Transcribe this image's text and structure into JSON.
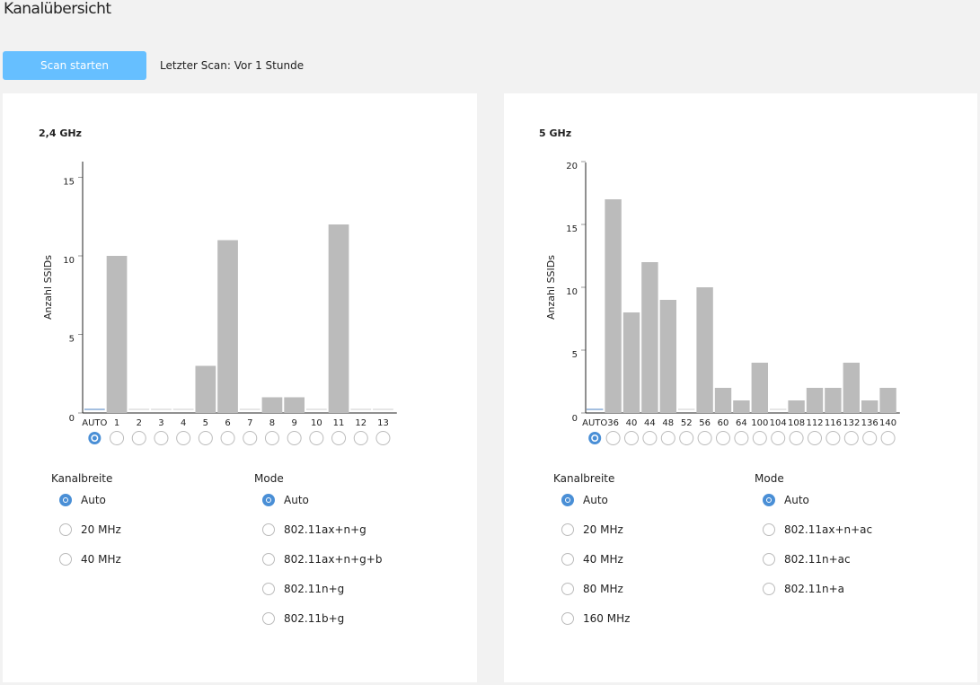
{
  "header": {
    "title": "Kanalübersicht",
    "scan_button": "Scan starten",
    "last_scan": "Letzter Scan: Vor 1 Stunde"
  },
  "colors": {
    "accent": "#66bfff",
    "radio_selected": "#4a8fd6",
    "bar": "#bbbbbb"
  },
  "chart_data": [
    {
      "type": "bar",
      "title": "2,4 GHz",
      "ylabel": "Anzahl SSIDs",
      "ylim": [
        0,
        16
      ],
      "yticks": [
        0,
        5,
        10,
        15
      ],
      "categories": [
        "AUTO",
        "1",
        "2",
        "3",
        "4",
        "5",
        "6",
        "7",
        "8",
        "9",
        "10",
        "11",
        "12",
        "13"
      ],
      "values": [
        0,
        10,
        0,
        0,
        0,
        3,
        11,
        0,
        1,
        1,
        0,
        12,
        0,
        0
      ],
      "selected": "AUTO"
    },
    {
      "type": "bar",
      "title": "5 GHz",
      "ylabel": "Anzahl SSIDs",
      "ylim": [
        0,
        20
      ],
      "yticks": [
        0,
        5,
        10,
        15,
        20
      ],
      "categories": [
        "AUTO",
        "36",
        "40",
        "44",
        "48",
        "52",
        "56",
        "60",
        "64",
        "100",
        "104",
        "108",
        "112",
        "116",
        "132",
        "136",
        "140"
      ],
      "values": [
        0,
        17,
        8,
        12,
        9,
        0,
        10,
        2,
        1,
        4,
        0,
        1,
        2,
        2,
        4,
        1,
        2
      ],
      "selected": "AUTO"
    }
  ],
  "panels": [
    {
      "kanalbreite_label": "Kanalbreite",
      "kanalbreite": [
        "Auto",
        "20 MHz",
        "40 MHz"
      ],
      "mode_label": "Mode",
      "mode": [
        "Auto",
        "802.11ax+n+g",
        "802.11ax+n+g+b",
        "802.11n+g",
        "802.11b+g"
      ]
    },
    {
      "kanalbreite_label": "Kanalbreite",
      "kanalbreite": [
        "Auto",
        "20 MHz",
        "40 MHz",
        "80 MHz",
        "160 MHz"
      ],
      "mode_label": "Mode",
      "mode": [
        "Auto",
        "802.11ax+n+ac",
        "802.11n+ac",
        "802.11n+a"
      ]
    }
  ]
}
